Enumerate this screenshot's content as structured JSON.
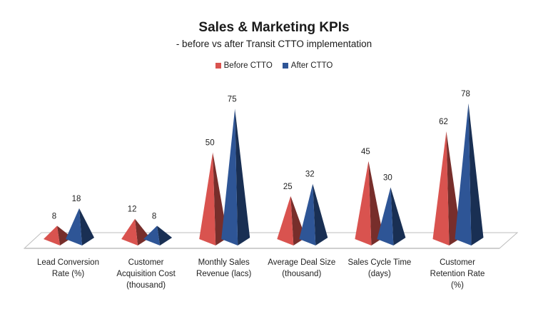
{
  "chart_data": {
    "type": "bar",
    "title": "Sales & Marketing  KPIs",
    "subtitle": "- before vs after Transit CTTO implementation",
    "categories": [
      [
        "Lead Conversion",
        "Rate (%)"
      ],
      [
        "Customer",
        "Acquisition Cost",
        "(thousand)"
      ],
      [
        "Monthly Sales",
        "Revenue (lacs)"
      ],
      [
        "Average Deal Size",
        "(thousand)"
      ],
      [
        "Sales Cycle Time",
        "(days)"
      ],
      [
        "Customer",
        "Retention Rate",
        "(%)"
      ]
    ],
    "series": [
      {
        "name": "Before CTTO",
        "color": "#d9534f",
        "values": [
          8,
          12,
          50,
          25,
          45,
          62
        ]
      },
      {
        "name": "After CTTO",
        "color": "#2e5596",
        "values": [
          18,
          8,
          75,
          32,
          30,
          78
        ]
      }
    ],
    "ylim": [
      0,
      80
    ],
    "legend_position": "top-center",
    "bar_shape": "pyramid",
    "grid": false
  }
}
